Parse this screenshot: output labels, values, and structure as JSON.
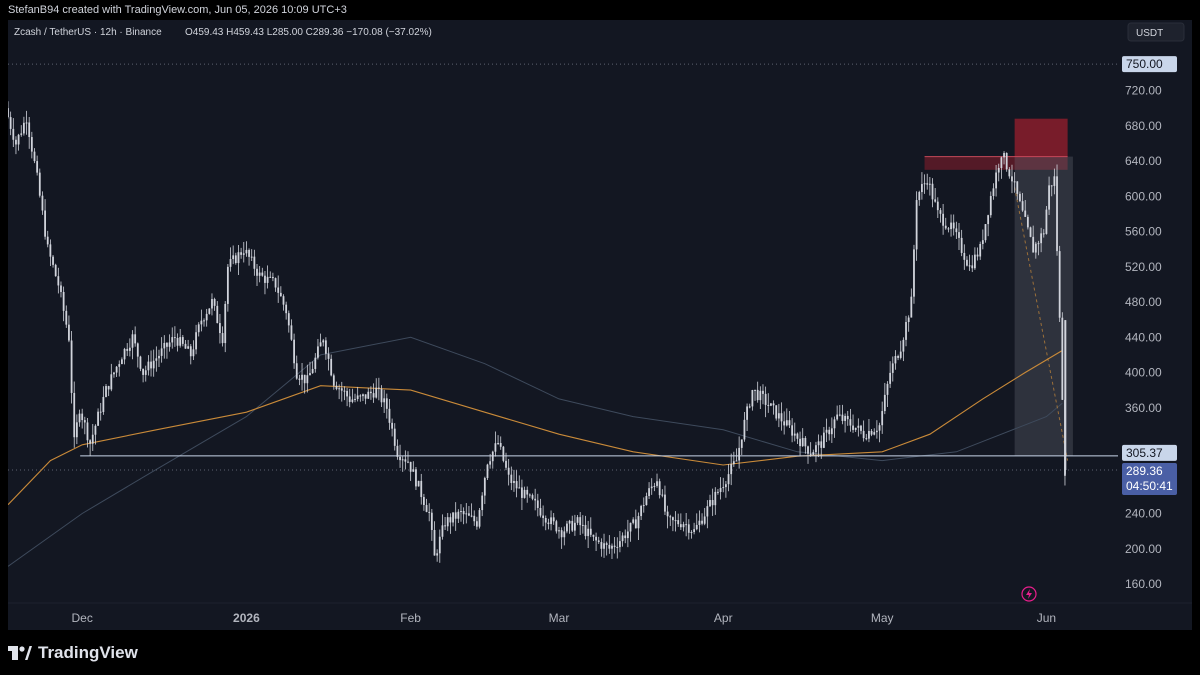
{
  "header": {
    "attribution": "StefanB94 created with TradingView.com, Jun 05, 2026 10:09 UTC+3"
  },
  "legend": {
    "symbol": "Zcash / TetherUS · 12h · Binance",
    "ohlc": "O459.43 H459.43 L285.00 C289.36 −170.08 (−37.02%)"
  },
  "currency": "USDT",
  "footer": {
    "brand": "TradingView"
  },
  "colors": {
    "background": "#131722",
    "candle": "#d1d4dc",
    "ma_orange": "#c98a39",
    "ma_slate": "#3e4a5c",
    "supply_zone": "#8b1d2c",
    "price_label": "#4a5fa5",
    "level_line": "#c9d6ea"
  },
  "chart_data": {
    "type": "candlestick",
    "title": "Zcash / TetherUS · 12h · Binance",
    "xlabel": "",
    "ylabel": "",
    "ylim": [
      140,
      770
    ],
    "xlim": [
      "2025-11-17",
      "2026-06-13"
    ],
    "yticks": [
      160,
      200,
      240,
      280,
      320,
      360,
      400,
      440,
      480,
      520,
      560,
      600,
      640,
      680,
      720
    ],
    "ytick_labels": [
      "160.00",
      "200.00",
      "240.00",
      "",
      "",
      "360.00",
      "400.00",
      "440.00",
      "480.00",
      "520.00",
      "560.00",
      "600.00",
      "640.00",
      "680.00",
      "720.00"
    ],
    "xticks": [
      {
        "label": "Dec",
        "date": "2025-12-01",
        "bold": false
      },
      {
        "label": "2026",
        "date": "2026-01-01",
        "bold": true
      },
      {
        "label": "Feb",
        "date": "2026-02-01",
        "bold": false
      },
      {
        "label": "Mar",
        "date": "2026-03-01",
        "bold": false
      },
      {
        "label": "Apr",
        "date": "2026-04-01",
        "bold": false
      },
      {
        "label": "May",
        "date": "2026-05-01",
        "bold": false
      },
      {
        "label": "Jun",
        "date": "2026-06-01",
        "bold": false
      }
    ],
    "close_path": [
      [
        "2025-11-17",
        700
      ],
      [
        "2025-11-19",
        660
      ],
      [
        "2025-11-21",
        690
      ],
      [
        "2025-11-23",
        620
      ],
      [
        "2025-11-25",
        540
      ],
      [
        "2025-11-27",
        500
      ],
      [
        "2025-11-29",
        440
      ],
      [
        "2025-11-30",
        320
      ],
      [
        "2025-12-01",
        360
      ],
      [
        "2025-12-03",
        320
      ],
      [
        "2025-12-06",
        380
      ],
      [
        "2025-12-09",
        420
      ],
      [
        "2025-12-11",
        440
      ],
      [
        "2025-12-13",
        400
      ],
      [
        "2025-12-16",
        420
      ],
      [
        "2025-12-19",
        440
      ],
      [
        "2025-12-22",
        420
      ],
      [
        "2025-12-24",
        460
      ],
      [
        "2025-12-26",
        480
      ],
      [
        "2025-12-28",
        440
      ],
      [
        "2025-12-29",
        520
      ],
      [
        "2026-01-01",
        540
      ],
      [
        "2026-01-04",
        510
      ],
      [
        "2026-01-07",
        500
      ],
      [
        "2026-01-09",
        470
      ],
      [
        "2026-01-11",
        400
      ],
      [
        "2026-01-13",
        390
      ],
      [
        "2026-01-16",
        440
      ],
      [
        "2026-01-18",
        390
      ],
      [
        "2026-01-21",
        370
      ],
      [
        "2026-01-23",
        370
      ],
      [
        "2026-01-26",
        380
      ],
      [
        "2026-01-28",
        360
      ],
      [
        "2026-01-30",
        310
      ],
      [
        "2026-02-01",
        300
      ],
      [
        "2026-02-03",
        270
      ],
      [
        "2026-02-05",
        240
      ],
      [
        "2026-02-06",
        190
      ],
      [
        "2026-02-08",
        230
      ],
      [
        "2026-02-11",
        240
      ],
      [
        "2026-02-14",
        230
      ],
      [
        "2026-02-16",
        300
      ],
      [
        "2026-02-18",
        320
      ],
      [
        "2026-02-20",
        280
      ],
      [
        "2026-02-23",
        260
      ],
      [
        "2026-02-25",
        250
      ],
      [
        "2026-02-28",
        230
      ],
      [
        "2026-03-02",
        220
      ],
      [
        "2026-03-05",
        230
      ],
      [
        "2026-03-08",
        210
      ],
      [
        "2026-03-11",
        200
      ],
      [
        "2026-03-13",
        210
      ],
      [
        "2026-03-16",
        230
      ],
      [
        "2026-03-18",
        260
      ],
      [
        "2026-03-20",
        280
      ],
      [
        "2026-03-22",
        230
      ],
      [
        "2026-03-25",
        230
      ],
      [
        "2026-03-27",
        220
      ],
      [
        "2026-03-30",
        250
      ],
      [
        "2026-04-02",
        280
      ],
      [
        "2026-04-04",
        300
      ],
      [
        "2026-04-05",
        330
      ],
      [
        "2026-04-07",
        380
      ],
      [
        "2026-04-09",
        370
      ],
      [
        "2026-04-12",
        350
      ],
      [
        "2026-04-15",
        330
      ],
      [
        "2026-04-18",
        310
      ],
      [
        "2026-04-20",
        320
      ],
      [
        "2026-04-23",
        350
      ],
      [
        "2026-04-26",
        340
      ],
      [
        "2026-04-28",
        330
      ],
      [
        "2026-05-01",
        340
      ],
      [
        "2026-05-03",
        400
      ],
      [
        "2026-05-05",
        430
      ],
      [
        "2026-05-07",
        480
      ],
      [
        "2026-05-08",
        600
      ],
      [
        "2026-05-10",
        620
      ],
      [
        "2026-05-12",
        580
      ],
      [
        "2026-05-15",
        560
      ],
      [
        "2026-05-18",
        520
      ],
      [
        "2026-05-20",
        540
      ],
      [
        "2026-05-22",
        600
      ],
      [
        "2026-05-24",
        650
      ],
      [
        "2026-05-26",
        620
      ],
      [
        "2026-05-28",
        580
      ],
      [
        "2026-05-30",
        540
      ],
      [
        "2026-06-01",
        560
      ],
      [
        "2026-06-02",
        610
      ],
      [
        "2026-06-03",
        620
      ],
      [
        "2026-06-04",
        459.43
      ],
      [
        "2026-06-05",
        289.36
      ]
    ],
    "ma_orange": [
      [
        "2025-11-17",
        250
      ],
      [
        "2025-11-25",
        300
      ],
      [
        "2025-12-01",
        318
      ],
      [
        "2025-12-15",
        335
      ],
      [
        "2026-01-01",
        355
      ],
      [
        "2026-01-15",
        385
      ],
      [
        "2026-02-01",
        380
      ],
      [
        "2026-02-15",
        355
      ],
      [
        "2026-03-01",
        330
      ],
      [
        "2026-03-15",
        310
      ],
      [
        "2026-04-01",
        295
      ],
      [
        "2026-04-15",
        305
      ],
      [
        "2026-05-01",
        310
      ],
      [
        "2026-05-10",
        330
      ],
      [
        "2026-05-20",
        370
      ],
      [
        "2026-05-28",
        400
      ],
      [
        "2026-06-04",
        425
      ]
    ],
    "ma_slate": [
      [
        "2025-11-17",
        180
      ],
      [
        "2025-12-01",
        240
      ],
      [
        "2025-12-15",
        290
      ],
      [
        "2026-01-01",
        350
      ],
      [
        "2026-01-15",
        420
      ],
      [
        "2026-02-01",
        440
      ],
      [
        "2026-02-15",
        410
      ],
      [
        "2026-03-01",
        370
      ],
      [
        "2026-03-15",
        350
      ],
      [
        "2026-04-01",
        335
      ],
      [
        "2026-04-15",
        310
      ],
      [
        "2026-05-01",
        300
      ],
      [
        "2026-05-15",
        310
      ],
      [
        "2026-06-01",
        350
      ],
      [
        "2026-06-04",
        365
      ]
    ],
    "horizontal_levels": [
      {
        "price": 305.37,
        "label": "305.37",
        "style": "solid"
      },
      {
        "price": 750.0,
        "label": "750.00",
        "style": "dotted"
      },
      {
        "price": 289.36,
        "label": "289.36",
        "style": "dotted"
      }
    ],
    "countdown": "04:50:41",
    "zones": [
      {
        "name": "supply",
        "from": "2026-05-09",
        "to": "2026-06-05",
        "low": 630,
        "high": 645
      },
      {
        "name": "supply",
        "from": "2026-05-26",
        "to": "2026-06-05",
        "low": 645,
        "high": 688
      },
      {
        "name": "measure",
        "from": "2026-05-26",
        "to": "2026-06-06",
        "low": 305.37,
        "high": 645
      }
    ]
  }
}
